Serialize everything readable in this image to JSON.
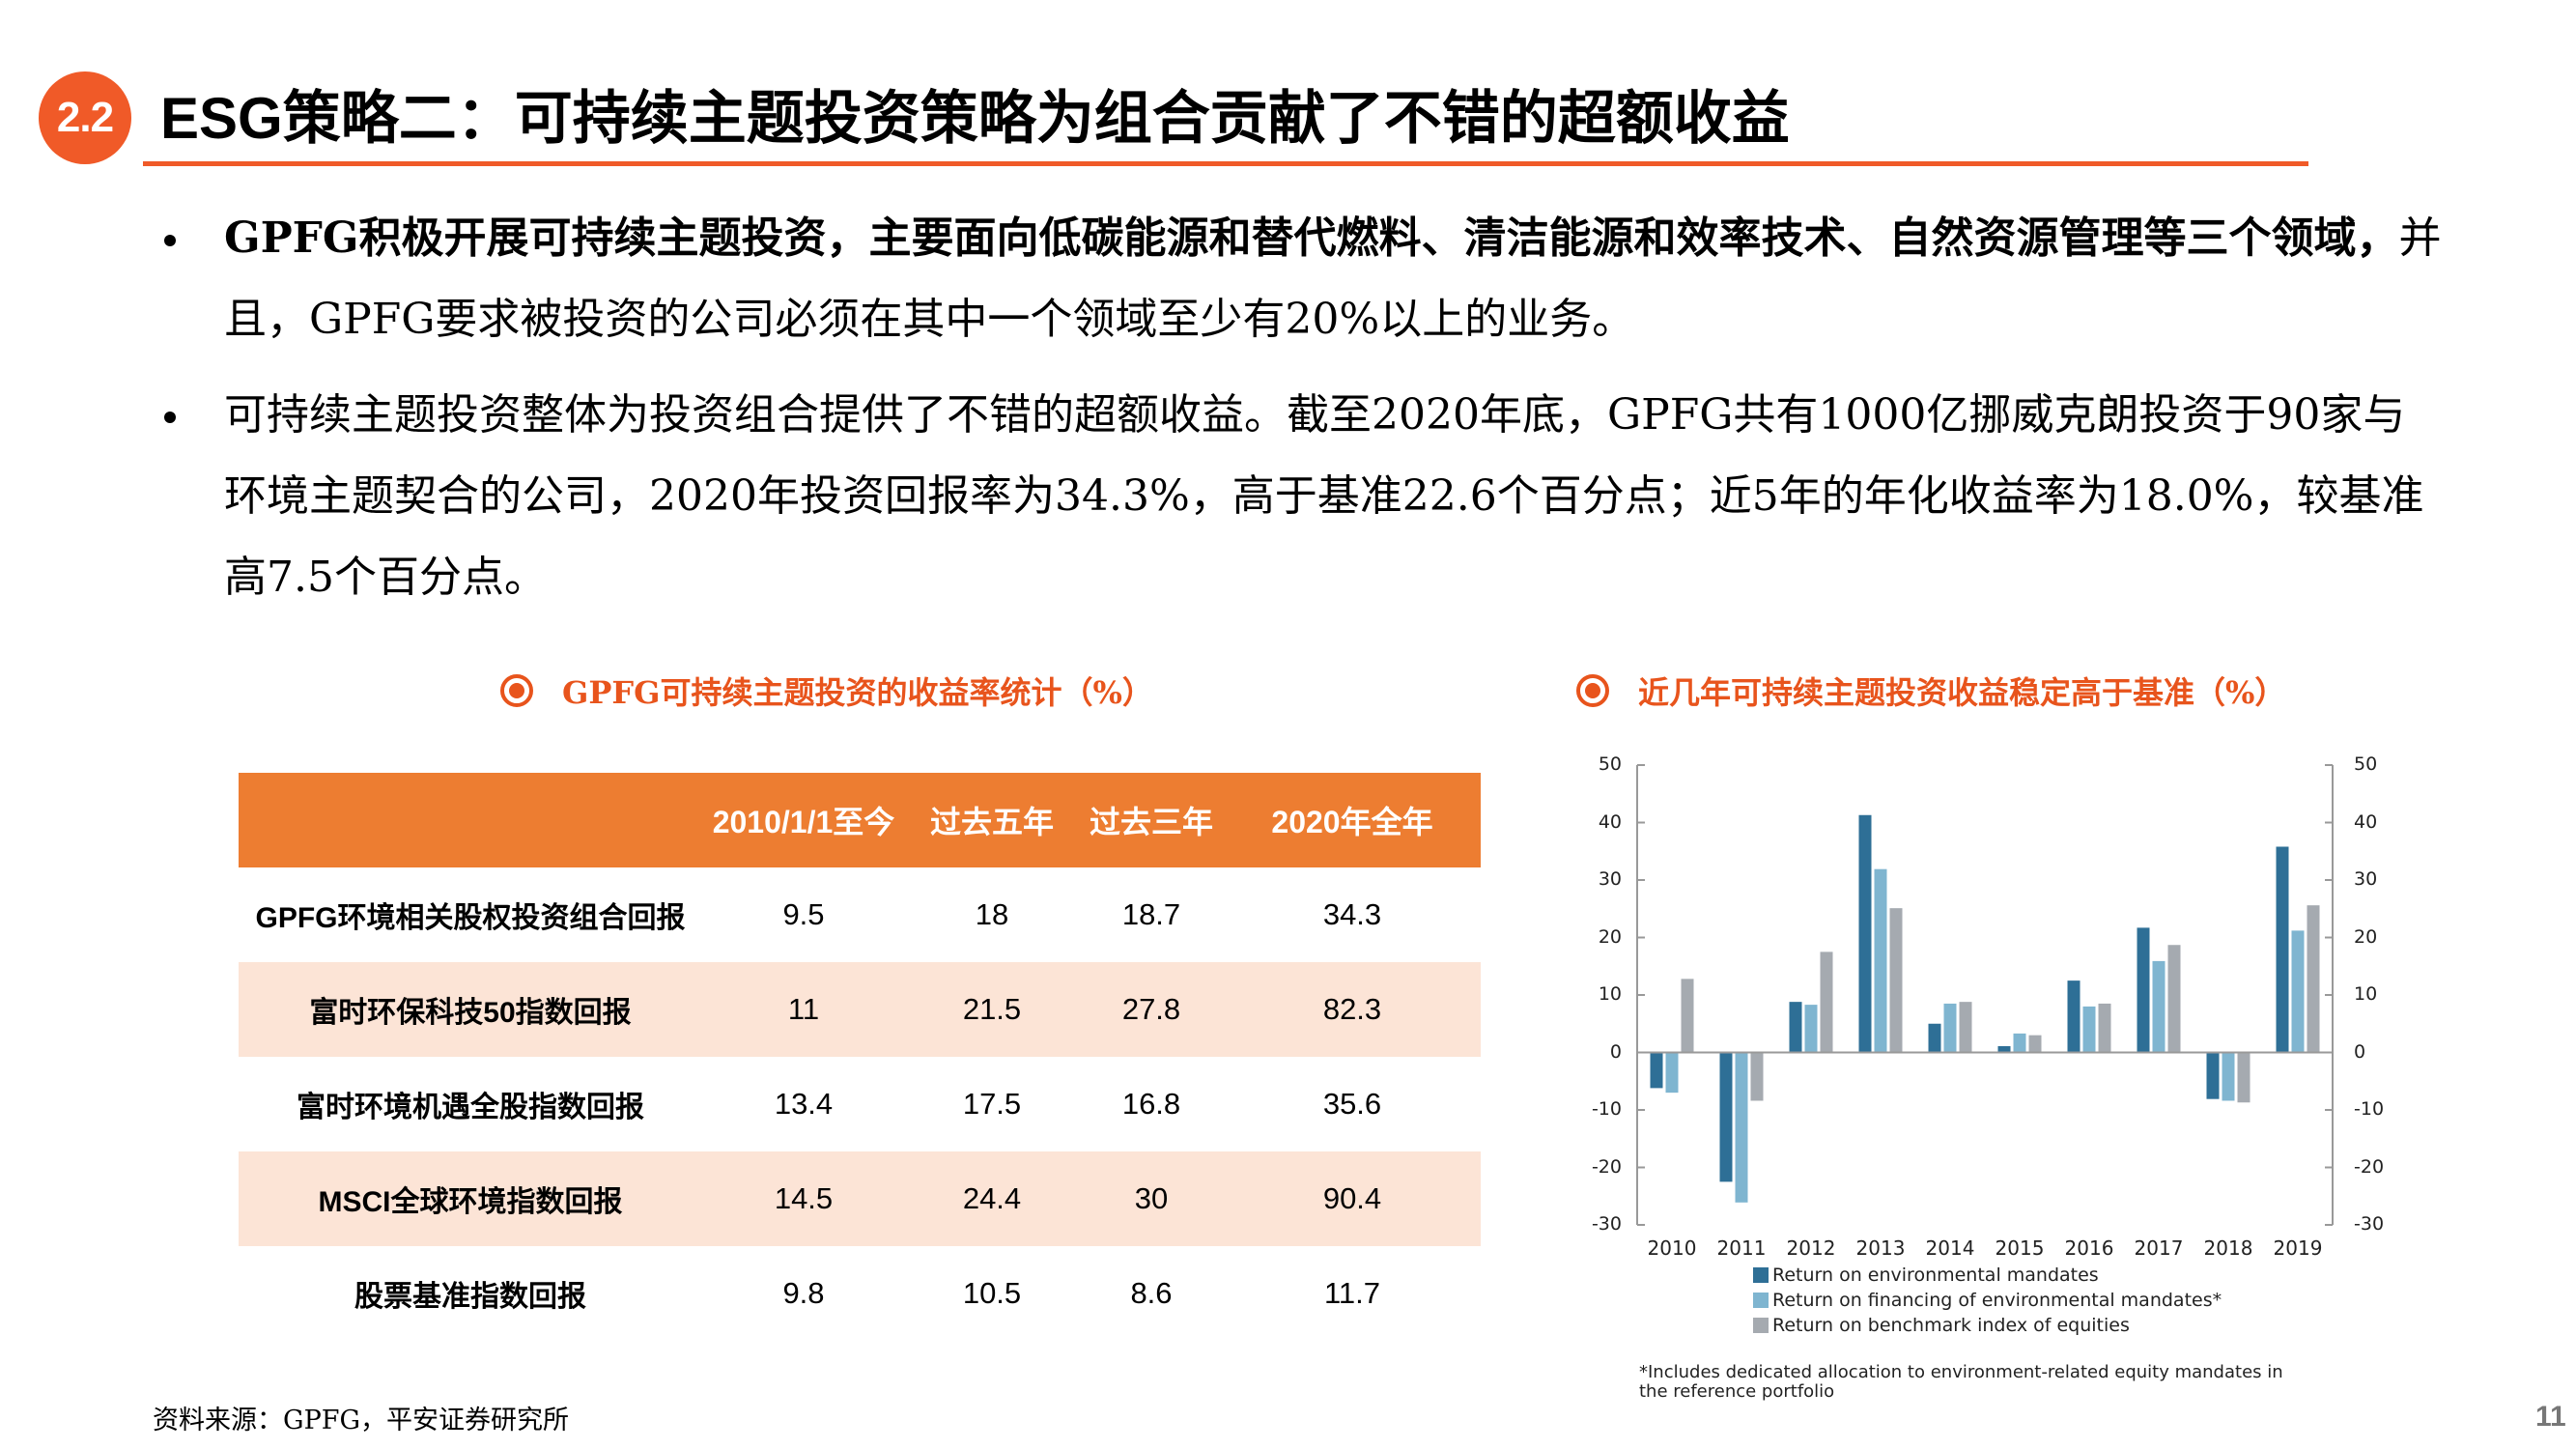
{
  "header": {
    "section_number": "2.2",
    "title_prefix": "ESG",
    "title": "策略二：可持续主题投资策略为组合贡献了不错的超额收益",
    "accent_color": "#f05a28"
  },
  "bullets": [
    {
      "bold": "GPFG积极开展可持续主题投资，主要面向低碳能源和替代燃料、清洁能源和效率技术、自然资源管理等三个领域，",
      "normal": "并且，GPFG要求被投资的公司必须在其中一个领域至少有20%以上的业务。"
    },
    {
      "bold": "",
      "normal": "可持续主题投资整体为投资组合提供了不错的超额收益。截至2020年底，GPFG共有1000亿挪威克朗投资于90家与环境主题契合的公司，2020年投资回报率为34.3%，高于基准22.6个百分点；近5年的年化收益率为18.0%，较基准高7.5个百分点。"
    }
  ],
  "left_panel": {
    "title": "GPFG可持续主题投资的收益率统计（%）",
    "table": {
      "headers": [
        "",
        "2010/1/1至今",
        "过去五年",
        "过去三年",
        "2020年全年"
      ],
      "header_color": "#ed7d31",
      "alt_row_color": "#fce4d6",
      "rows": [
        {
          "label": "GPFG环境相关股权投资组合回报",
          "values": [
            "9.5",
            "18",
            "18.7",
            "34.3"
          ]
        },
        {
          "label": "富时环保科技50指数回报",
          "values": [
            "11",
            "21.5",
            "27.8",
            "82.3"
          ]
        },
        {
          "label": "富时环境机遇全股指数回报",
          "values": [
            "13.4",
            "17.5",
            "16.8",
            "35.6"
          ]
        },
        {
          "label": "MSCI全球环境指数回报",
          "values": [
            "14.5",
            "24.4",
            "30",
            "90.4"
          ]
        },
        {
          "label": "股票基准指数回报",
          "values": [
            "9.8",
            "10.5",
            "8.6",
            "11.7"
          ]
        }
      ]
    }
  },
  "right_panel": {
    "title": "近几年可持续主题投资收益稳定高于基准（%）"
  },
  "chart_data": [
    {
      "type": "table",
      "title": "GPFG可持续主题投资的收益率统计（%）",
      "columns": [
        "2010/1/1至今",
        "过去五年",
        "过去三年",
        "2020年全年"
      ],
      "rows": [
        "GPFG环境相关股权投资组合回报",
        "富时环保科技50指数回报",
        "富时环境机遇全股指数回报",
        "MSCI全球环境指数回报",
        "股票基准指数回报"
      ],
      "values": [
        [
          9.5,
          18,
          18.7,
          34.3
        ],
        [
          11,
          21.5,
          27.8,
          82.3
        ],
        [
          13.4,
          17.5,
          16.8,
          35.6
        ],
        [
          14.5,
          24.4,
          30,
          90.4
        ],
        [
          9.8,
          10.5,
          8.6,
          11.7
        ]
      ]
    },
    {
      "type": "bar",
      "title": "近几年可持续主题投资收益稳定高于基准（%）",
      "categories": [
        "2010",
        "2011",
        "2012",
        "2013",
        "2014",
        "2015",
        "2016",
        "2017",
        "2018",
        "2019"
      ],
      "series": [
        {
          "name": "Return on environmental mandates",
          "color": "#2e6f96",
          "values": [
            -6.2,
            -22.5,
            8.8,
            41.3,
            5.0,
            1.1,
            12.5,
            21.7,
            -8.1,
            35.8
          ]
        },
        {
          "name": "Return on financing of environmental mandates*",
          "color": "#7fb5d0",
          "values": [
            -7.0,
            -26.1,
            8.3,
            31.9,
            8.5,
            3.3,
            8.0,
            15.9,
            -8.4,
            21.2
          ]
        },
        {
          "name": "Return on benchmark index of equities",
          "color": "#a5aab0",
          "values": [
            12.8,
            -8.4,
            17.5,
            25.1,
            8.8,
            3.0,
            8.5,
            18.7,
            -8.7,
            25.6
          ]
        }
      ],
      "xlabel": "",
      "ylabel": "",
      "ylim": [
        -30,
        50
      ],
      "yticks": [
        50,
        40,
        30,
        20,
        10,
        0,
        -10,
        -20,
        -30
      ],
      "y_axis_right_mirror": true,
      "grid": false,
      "legend_position": "bottom",
      "footnote": "*Includes dedicated allocation to environment-related equity mandates in the reference portfolio"
    }
  ],
  "footer": {
    "source": "资料来源：GPFG，平安证券研究所",
    "page_number": "11"
  }
}
